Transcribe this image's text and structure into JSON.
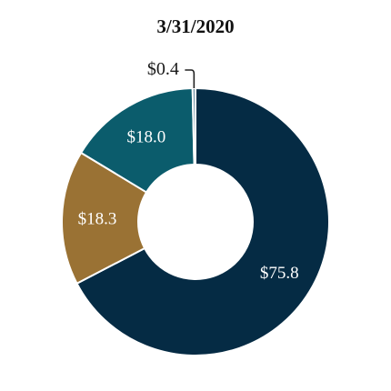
{
  "chart_data": {
    "type": "pie",
    "title": "3/31/2020",
    "slices": [
      {
        "label": "$75.8",
        "value": 75.8,
        "color": "#052b44"
      },
      {
        "label": "$18.3",
        "value": 18.3,
        "color": "#9a7234"
      },
      {
        "label": "$18.0",
        "value": 18.0,
        "color": "#0b5c6c"
      },
      {
        "label": "$0.4",
        "value": 0.4,
        "color": "#6c8ea2"
      }
    ]
  }
}
